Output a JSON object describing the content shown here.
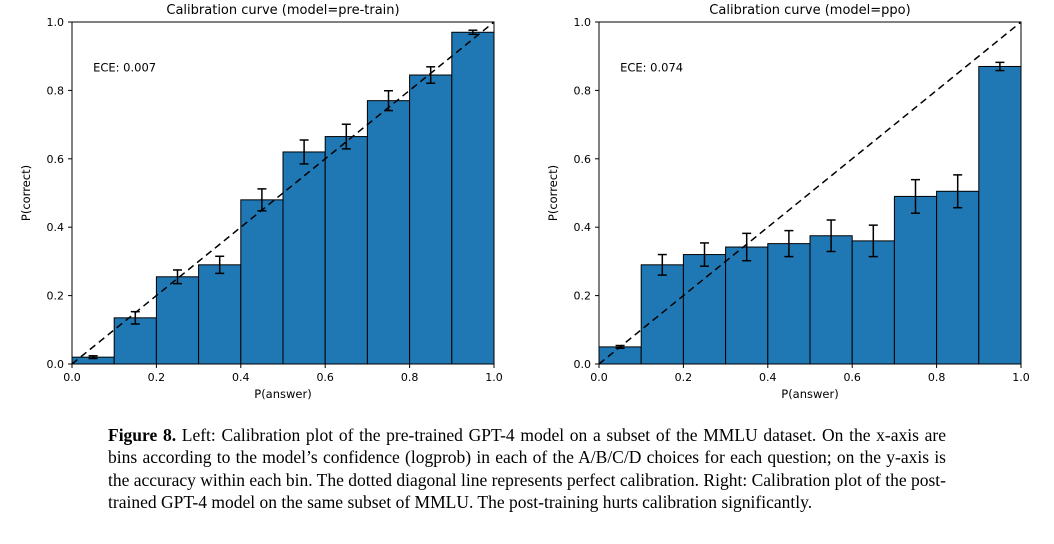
{
  "caption": {
    "label": "Figure 8.",
    "text": " Left: Calibration plot of the pre-trained GPT-4 model on a subset of the MMLU dataset. On the x-axis are bins according to the model’s confidence (logprob) in each of the A/B/C/D choices for each question; on the y-axis is the accuracy within each bin. The dotted diagonal line represents perfect calibration. Right: Calibration plot of the post-trained GPT-4 model on the same subset of MMLU. The post-training hurts calibration significantly."
  },
  "chart_data": [
    {
      "type": "bar",
      "title": "Calibration curve (model=pre-train)",
      "annotation": "ECE: 0.007",
      "xlabel": "P(answer)",
      "ylabel": "P(correct)",
      "xlim": [
        0.0,
        1.0
      ],
      "ylim": [
        0.0,
        1.0
      ],
      "xticks": [
        0.0,
        0.2,
        0.4,
        0.6,
        0.8,
        1.0
      ],
      "yticks": [
        0.0,
        0.2,
        0.4,
        0.6,
        0.8,
        1.0
      ],
      "grid": false,
      "legend": null,
      "bin_edges": [
        0.0,
        0.1,
        0.2,
        0.3,
        0.4,
        0.5,
        0.6,
        0.7,
        0.8,
        0.9,
        1.0
      ],
      "values": [
        0.02,
        0.135,
        0.255,
        0.29,
        0.48,
        0.62,
        0.665,
        0.77,
        0.845,
        0.97
      ],
      "errors": [
        0.004,
        0.018,
        0.02,
        0.025,
        0.032,
        0.035,
        0.036,
        0.029,
        0.024,
        0.006
      ],
      "bar_color": "#1f77b4",
      "bar_edge_color": "#000000",
      "diagonal_line": "perfect-calibration-dashed"
    },
    {
      "type": "bar",
      "title": "Calibration curve (model=ppo)",
      "annotation": "ECE: 0.074",
      "xlabel": "P(answer)",
      "ylabel": "P(correct)",
      "xlim": [
        0.0,
        1.0
      ],
      "ylim": [
        0.0,
        1.0
      ],
      "xticks": [
        0.0,
        0.2,
        0.4,
        0.6,
        0.8,
        1.0
      ],
      "yticks": [
        0.0,
        0.2,
        0.4,
        0.6,
        0.8,
        1.0
      ],
      "grid": false,
      "legend": null,
      "bin_edges": [
        0.0,
        0.1,
        0.2,
        0.3,
        0.4,
        0.5,
        0.6,
        0.7,
        0.8,
        0.9,
        1.0
      ],
      "values": [
        0.05,
        0.29,
        0.32,
        0.342,
        0.352,
        0.375,
        0.36,
        0.49,
        0.505,
        0.87
      ],
      "errors": [
        0.004,
        0.03,
        0.034,
        0.04,
        0.038,
        0.046,
        0.046,
        0.049,
        0.048,
        0.012
      ],
      "bar_color": "#1f77b4",
      "bar_edge_color": "#000000",
      "diagonal_line": "perfect-calibration-dashed"
    }
  ]
}
